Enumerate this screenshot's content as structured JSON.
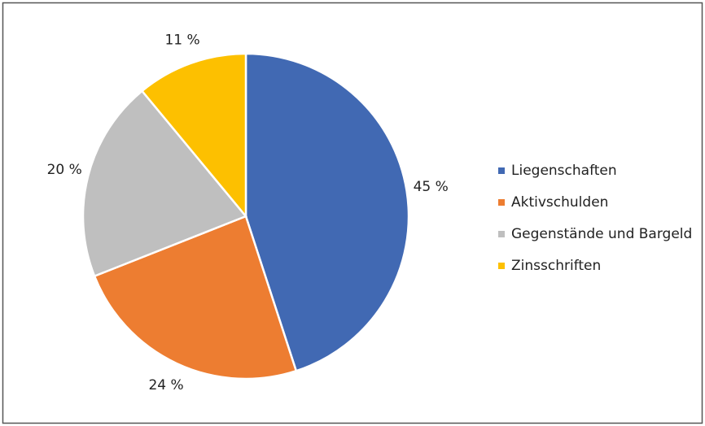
{
  "chart_data": {
    "type": "pie",
    "categories": [
      "Liegenschaften",
      "Aktivschulden",
      "Gegenstände und Bargeld",
      "Zinsschriften"
    ],
    "values": [
      45,
      24,
      20,
      11
    ],
    "value_labels": [
      "45 %",
      "24 %",
      "20 %",
      "11 %"
    ],
    "colors": [
      "#4169b3",
      "#ed7d31",
      "#bfbfbf",
      "#fdc000"
    ],
    "legend": "right"
  }
}
